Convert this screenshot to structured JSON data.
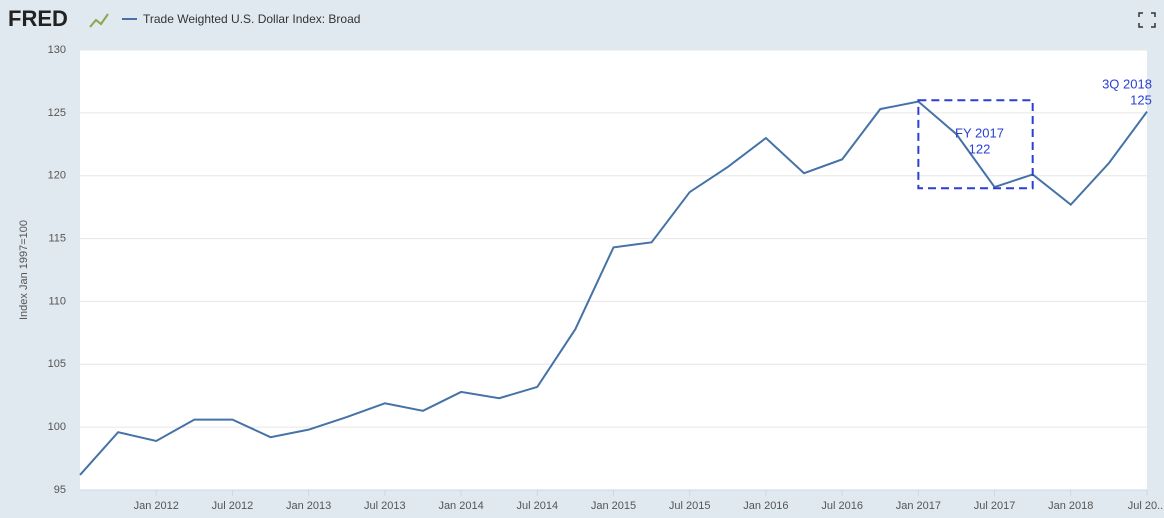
{
  "chart_data": {
    "type": "line",
    "brand": "FRED",
    "series": [
      {
        "name": "Trade Weighted U.S. Dollar Index: Broad",
        "color": "#4572a7",
        "values": [
          96.2,
          99.6,
          98.9,
          100.6,
          100.6,
          99.2,
          99.8,
          100.8,
          101.9,
          101.3,
          102.8,
          102.3,
          103.2,
          107.8,
          114.3,
          114.7,
          118.7,
          120.7,
          123.0,
          120.2,
          121.3,
          125.3,
          125.9,
          123.3,
          119.1,
          120.1,
          117.7,
          121.0,
          125.1
        ]
      }
    ],
    "x": [
      "2011-07",
      "2011-10",
      "2012-01",
      "2012-04",
      "2012-07",
      "2012-10",
      "2013-01",
      "2013-04",
      "2013-07",
      "2013-10",
      "2014-01",
      "2014-04",
      "2014-07",
      "2014-10",
      "2015-01",
      "2015-04",
      "2015-07",
      "2015-10",
      "2016-01",
      "2016-04",
      "2016-07",
      "2016-10",
      "2017-01",
      "2017-04",
      "2017-07",
      "2017-10",
      "2018-01",
      "2018-04",
      "2018-07"
    ],
    "xlim": [
      "2011-07",
      "2018-07"
    ],
    "xticks": [
      {
        "value": "2012-01",
        "label": "Jan 2012"
      },
      {
        "value": "2012-07",
        "label": "Jul 2012"
      },
      {
        "value": "2013-01",
        "label": "Jan 2013"
      },
      {
        "value": "2013-07",
        "label": "Jul 2013"
      },
      {
        "value": "2014-01",
        "label": "Jan 2014"
      },
      {
        "value": "2014-07",
        "label": "Jul 2014"
      },
      {
        "value": "2015-01",
        "label": "Jan 2015"
      },
      {
        "value": "2015-07",
        "label": "Jul 2015"
      },
      {
        "value": "2016-01",
        "label": "Jan 2016"
      },
      {
        "value": "2016-07",
        "label": "Jul 2016"
      },
      {
        "value": "2017-01",
        "label": "Jan 2017"
      },
      {
        "value": "2017-07",
        "label": "Jul 2017"
      },
      {
        "value": "2018-01",
        "label": "Jan 2018"
      },
      {
        "value": "2018-07",
        "label": "Jul 20..."
      }
    ],
    "ylim": [
      95,
      130
    ],
    "yticks": [
      95,
      100,
      105,
      110,
      115,
      120,
      125,
      130
    ],
    "ylabel": "Index Jan 1997=100",
    "grid": true,
    "annotations": [
      {
        "label": "FY 2017",
        "value": 122,
        "box": {
          "x": [
            "2017-01",
            "2017-10"
          ],
          "y": [
            119,
            126
          ]
        }
      },
      {
        "label": "3Q 2018",
        "value": 125
      }
    ]
  }
}
